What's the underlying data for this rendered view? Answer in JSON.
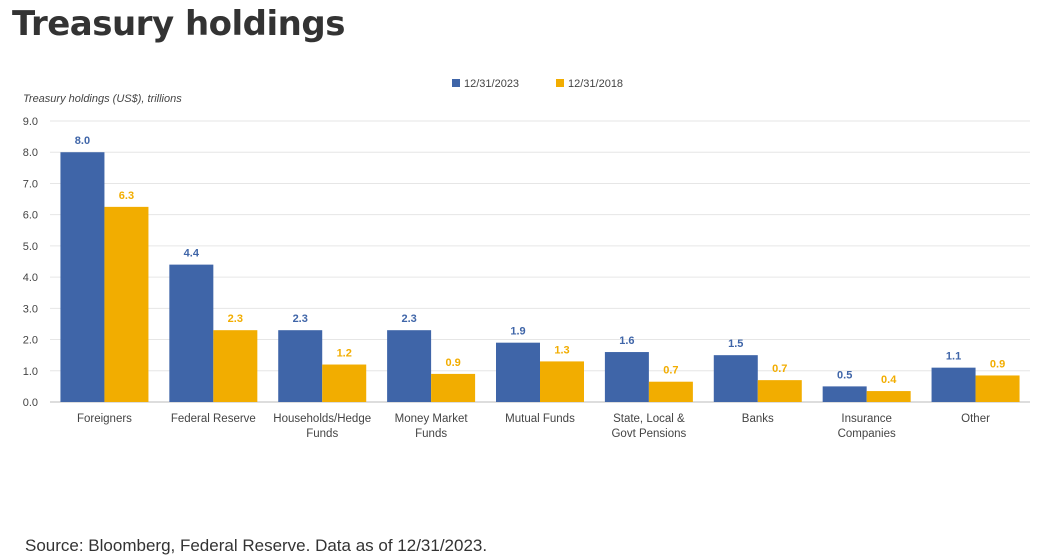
{
  "page_title": "Treasury holdings",
  "source_note": "Source: Bloomberg, Federal Reserve. Data as of 12/31/2023.",
  "colors": {
    "series_2023": "#3F65A8",
    "series_2018": "#F2AD00",
    "grid": "#E6E6E6",
    "axis": "#BBBBBB",
    "label_2023": "#3F65A8",
    "label_2018": "#F2AD00"
  },
  "chart_data": {
    "type": "bar",
    "title": "",
    "ylabel": "Treasury holdings (US$), trillions",
    "xlabel": "",
    "ylim": [
      0,
      9
    ],
    "yticks": [
      "0.0",
      "1.0",
      "2.0",
      "3.0",
      "4.0",
      "5.0",
      "6.0",
      "7.0",
      "8.0",
      "9.0"
    ],
    "grid": true,
    "legend_position": "top-center",
    "categories": [
      [
        "Foreigners"
      ],
      [
        "Federal Reserve"
      ],
      [
        "Households/Hedge",
        "Funds"
      ],
      [
        "Money Market",
        "Funds"
      ],
      [
        "Mutual Funds"
      ],
      [
        "State, Local &",
        "Govt Pensions"
      ],
      [
        "Banks"
      ],
      [
        "Insurance",
        "Companies"
      ],
      [
        "Other"
      ]
    ],
    "series": [
      {
        "name": "12/31/2023",
        "values": [
          8.0,
          4.4,
          2.3,
          2.3,
          1.9,
          1.6,
          1.5,
          0.5,
          1.1
        ],
        "labels": [
          "8.0",
          "4.4",
          "2.3",
          "2.3",
          "1.9",
          "1.6",
          "1.5",
          "0.5",
          "1.1"
        ]
      },
      {
        "name": "12/31/2018",
        "values": [
          6.25,
          2.3,
          1.2,
          0.9,
          1.3,
          0.65,
          0.7,
          0.35,
          0.85
        ],
        "labels": [
          "6.3",
          "2.3",
          "1.2",
          "0.9",
          "1.3",
          "0.7",
          "0.7",
          "0.4",
          "0.9"
        ]
      }
    ]
  }
}
